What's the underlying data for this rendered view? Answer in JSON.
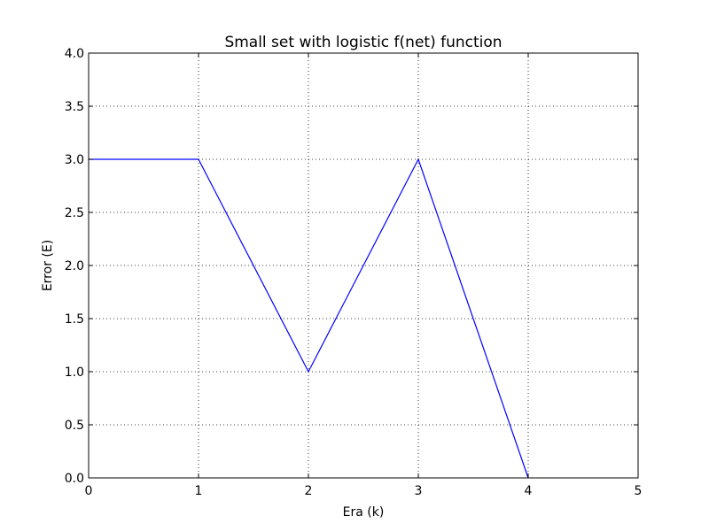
{
  "chart_data": {
    "type": "line",
    "title": "Small set with logistic f(net) function",
    "xlabel": "Era (k)",
    "ylabel": "Error (E)",
    "xlim": [
      0,
      5
    ],
    "ylim": [
      0,
      4
    ],
    "xticks": [
      0,
      1,
      2,
      3,
      4,
      5
    ],
    "yticks": [
      0.0,
      0.5,
      1.0,
      1.5,
      2.0,
      2.5,
      3.0,
      3.5,
      4.0
    ],
    "xtick_labels": [
      "0",
      "1",
      "2",
      "3",
      "4",
      "5"
    ],
    "ytick_labels": [
      "0.0",
      "0.5",
      "1.0",
      "1.5",
      "2.0",
      "2.5",
      "3.0",
      "3.5",
      "4.0"
    ],
    "grid": true,
    "series": [
      {
        "color": "#0000ff",
        "x": [
          0,
          1,
          2,
          3,
          4
        ],
        "y": [
          3,
          3,
          1,
          3,
          0
        ]
      }
    ]
  }
}
